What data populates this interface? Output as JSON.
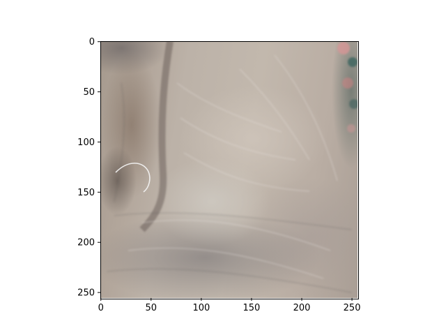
{
  "chart_data": {
    "type": "heatmap",
    "content": "image",
    "xlim": [
      -0.5,
      255.5
    ],
    "ylim": [
      255.5,
      -0.5
    ],
    "x_ticks": [
      0,
      50,
      100,
      150,
      200,
      250
    ],
    "y_ticks": [
      0,
      50,
      100,
      150,
      200,
      250
    ],
    "x_tick_labels": [
      "0",
      "50",
      "100",
      "150",
      "200",
      "250"
    ],
    "y_tick_labels": [
      "0",
      "50",
      "100",
      "150",
      "200",
      "250"
    ],
    "title": "",
    "xlabel": "",
    "ylabel": "",
    "grid": false,
    "legend": "none"
  }
}
